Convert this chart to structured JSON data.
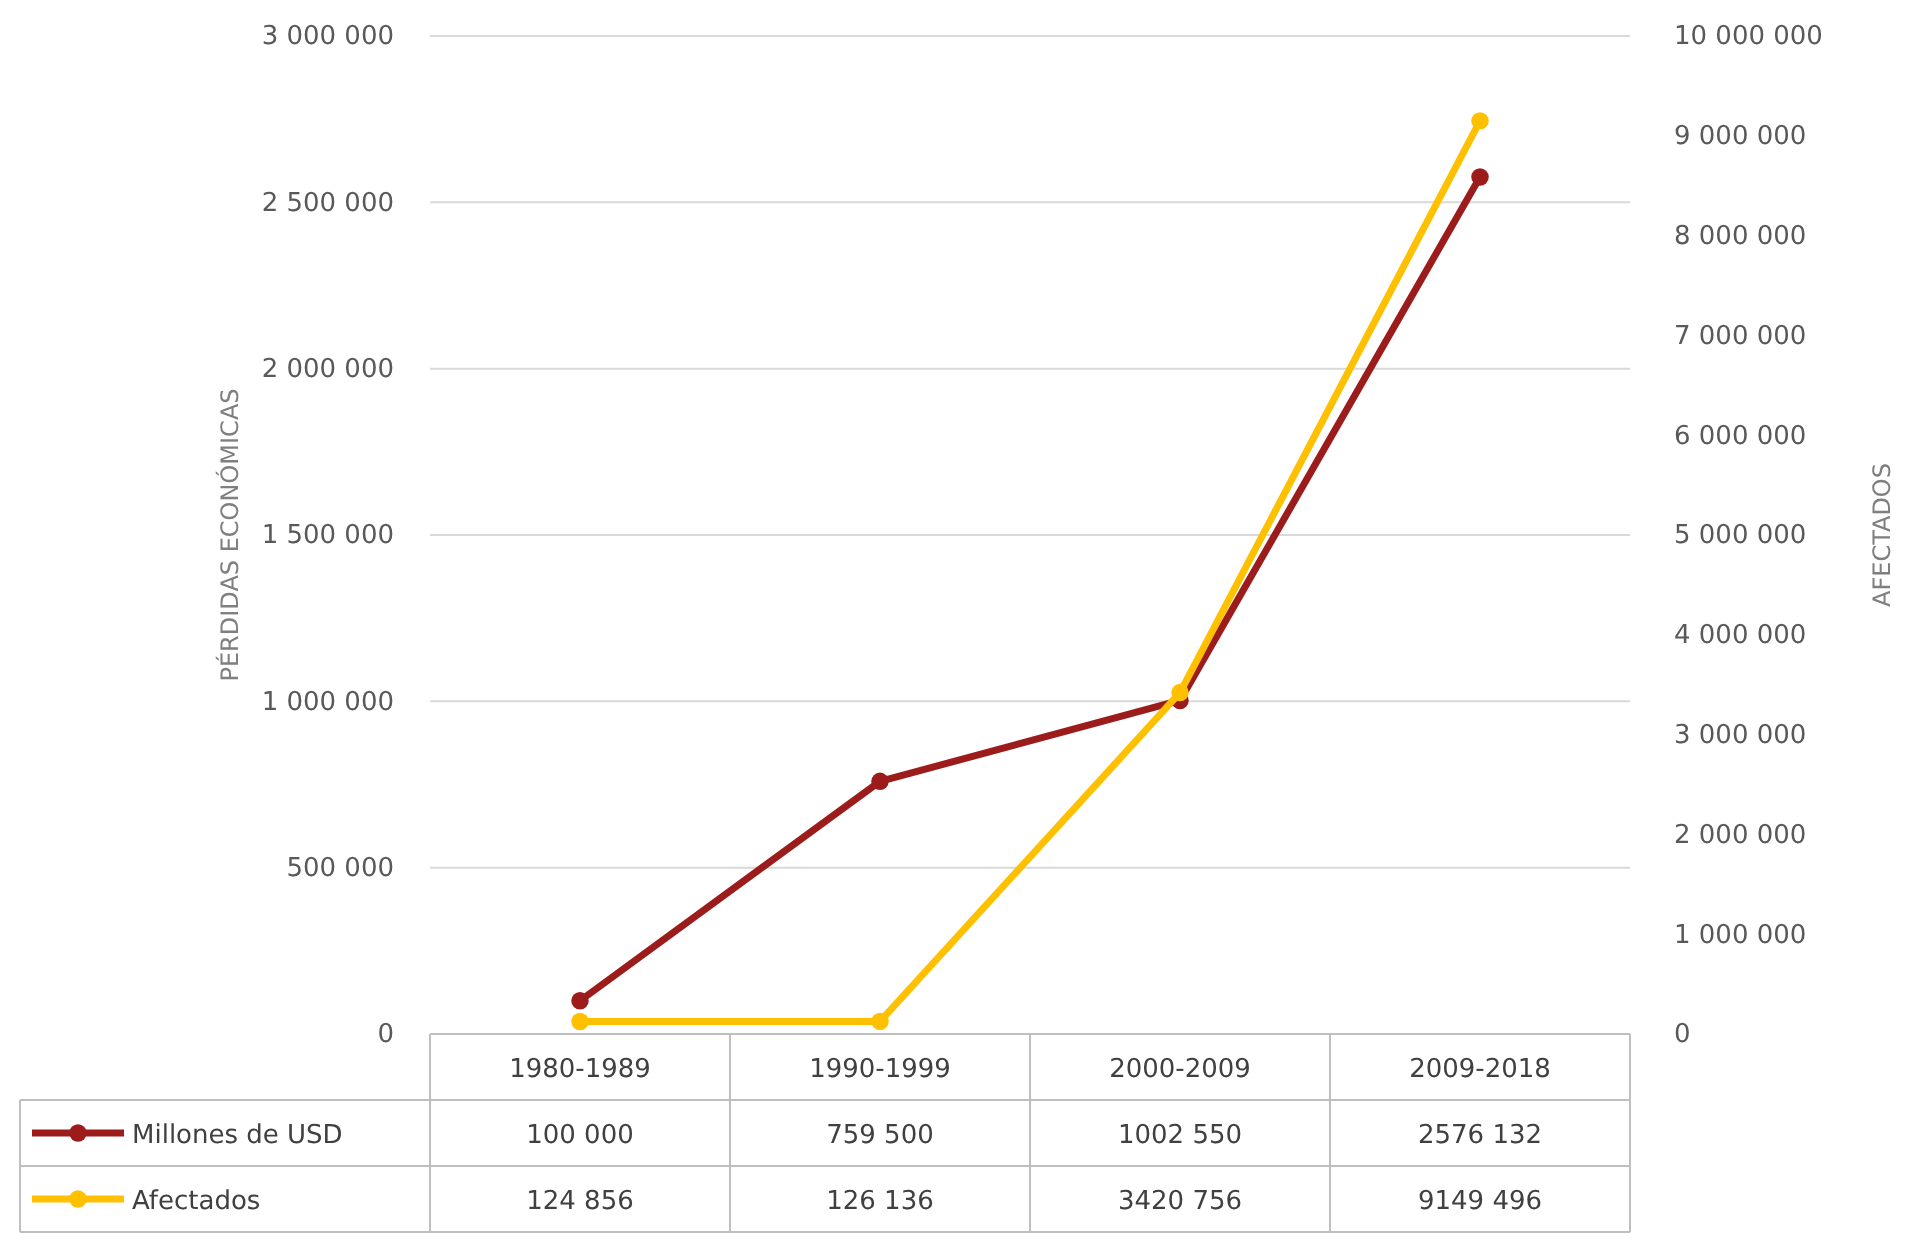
{
  "chart_data": {
    "type": "line",
    "ylabel": "PÉRDIDAS ECONÓMICAS",
    "y2label": "AFECTADOS",
    "categories": [
      "1980-1989",
      "1990-1999",
      "2000-2009",
      "2009-2018"
    ],
    "series": [
      {
        "name": "Millones de USD",
        "color": "#9c1c1c",
        "values": [
          100000,
          759500,
          1002550,
          2576132
        ],
        "value_labels": [
          "100 000",
          "759 500",
          "1002 550",
          "2576 132"
        ]
      },
      {
        "name": "Afectados",
        "color": "#ffc000",
        "axis": "y2",
        "values": [
          124856,
          126136,
          3420756,
          9149496
        ],
        "value_labels": [
          "124 856",
          "126 136",
          "3420 756",
          "9149 496"
        ]
      }
    ],
    "ylim": [
      0,
      3000000
    ],
    "yticks": [
      0,
      {
        "value": 500000,
        "label": "500 000"
      },
      {
        "value": 1000000,
        "label": "1 000 000"
      },
      {
        "value": 1500000,
        "label": "1 500 000"
      },
      {
        "value": 2000000,
        "label": "2 000 000"
      },
      {
        "value": 2500000,
        "label": "2 500 000"
      },
      {
        "value": 3000000,
        "label": "3 000 000"
      }
    ],
    "y2lim": [
      0,
      10000000
    ],
    "y2ticks": [
      0,
      {
        "value": 1000000,
        "label": "1 000 000"
      },
      {
        "value": 2000000,
        "label": "2 000 000"
      },
      {
        "value": 3000000,
        "label": "3 000 000"
      },
      {
        "value": 4000000,
        "label": "4 000 000"
      },
      {
        "value": 5000000,
        "label": "5 000 000"
      },
      {
        "value": 6000000,
        "label": "6 000 000"
      },
      {
        "value": 7000000,
        "label": "7 000 000"
      },
      {
        "value": 8000000,
        "label": "8 000 000"
      },
      {
        "value": 9000000,
        "label": "9 000 000"
      },
      {
        "value": 10000000,
        "label": "10 000 000"
      }
    ],
    "grid": "y",
    "legend": "bottom",
    "marker": "circle",
    "line_style": "solid"
  }
}
